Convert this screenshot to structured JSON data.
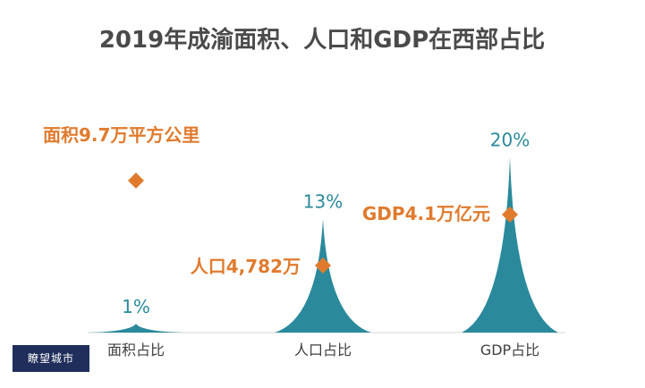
{
  "chart_data": {
    "type": "bar",
    "title": "2019年成渝面积、人口和GDP在西部占比",
    "categories": [
      "面积占比",
      "人口占比",
      "GDP占比"
    ],
    "values": [
      1,
      13,
      20
    ],
    "value_labels": [
      "1%",
      "13%",
      "20%"
    ],
    "annotations": [
      "面积9.7万平方公里",
      "人口4,782万",
      "GDP4.1万亿元"
    ],
    "ylim": [
      0,
      22
    ],
    "colors": {
      "bar": "#2a8a9c",
      "annotation": "#e07b2e",
      "marker": "#e07b2e",
      "title": "#4a4a4a",
      "value_label": "#2a8a9c",
      "category": "#404040"
    }
  },
  "logo_text": "瞭望城市"
}
